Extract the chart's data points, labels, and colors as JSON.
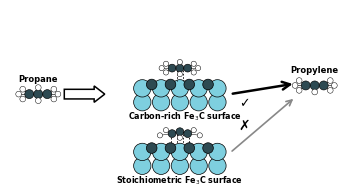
{
  "bg_color": "#ffffff",
  "cyan_color": "#7ecfdf",
  "dark_color": "#2d4a52",
  "white_color": "#ffffff",
  "label_carbon_rich": "Carbon-rich Fe$_3$C surface",
  "label_stoich": "Stoichiometric Fe$_3$C surface",
  "label_propane": "Propane",
  "label_propylene": "Propylene",
  "text_fontsize": 6.0,
  "bold_fontsize": 5.8
}
